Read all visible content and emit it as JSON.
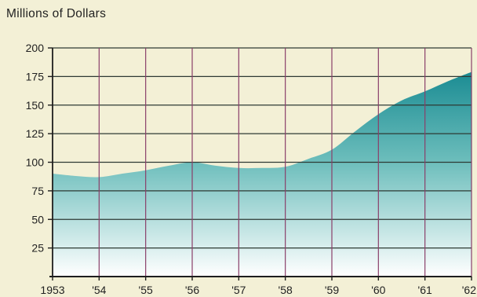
{
  "chart_data": {
    "type": "area",
    "title": "",
    "ylabel": "Millions of Dollars",
    "xlabel": "",
    "x_tick_labels": [
      "1953",
      "'54",
      "'55",
      "'56",
      "'57",
      "'58",
      "'59",
      "'60",
      "'61",
      "'62"
    ],
    "y_ticks": [
      25,
      50,
      75,
      100,
      125,
      150,
      175,
      200
    ],
    "xlim": [
      1953,
      1962
    ],
    "ylim": [
      0,
      200
    ],
    "grid": true,
    "series": [
      {
        "x": [
          1953,
          1953.5,
          1954,
          1954.5,
          1955,
          1955.5,
          1956,
          1956.5,
          1957,
          1957.5,
          1958,
          1958.5,
          1959,
          1959.5,
          1960,
          1960.5,
          1961,
          1961.5,
          1962
        ],
        "y": [
          90,
          88,
          87,
          90,
          93,
          97,
          100,
          97,
          95,
          95,
          96,
          103,
          111,
          127,
          142,
          154,
          162,
          171,
          179
        ]
      }
    ],
    "colors": {
      "background": "#f3f0d6",
      "area_top": "#1b8c93",
      "area_mid": "#6fbfbd",
      "area_bottom": "#ffffff",
      "grid_horizontal": "#2e3a34",
      "grid_vertical": "#8a3f6a",
      "text": "#222222"
    }
  }
}
